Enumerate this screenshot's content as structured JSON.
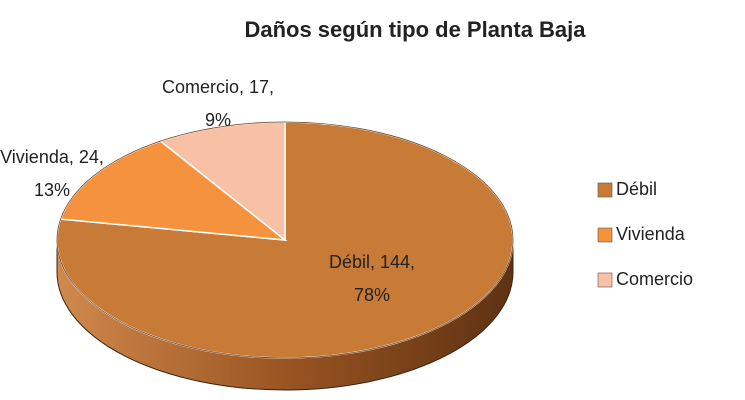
{
  "chart_data": {
    "type": "pie",
    "title": "Daños según tipo de Planta Baja",
    "categories": [
      "Débil",
      "Vivienda",
      "Comercio"
    ],
    "values": [
      144,
      24,
      17
    ],
    "value_labels": [
      "Débil, 144, 78%",
      "Vivienda, 24, 13%",
      "Comercio, 17, 9%"
    ],
    "colors": [
      "#c87a37",
      "#f5923e",
      "#f8c1a6"
    ],
    "legend": "right"
  }
}
